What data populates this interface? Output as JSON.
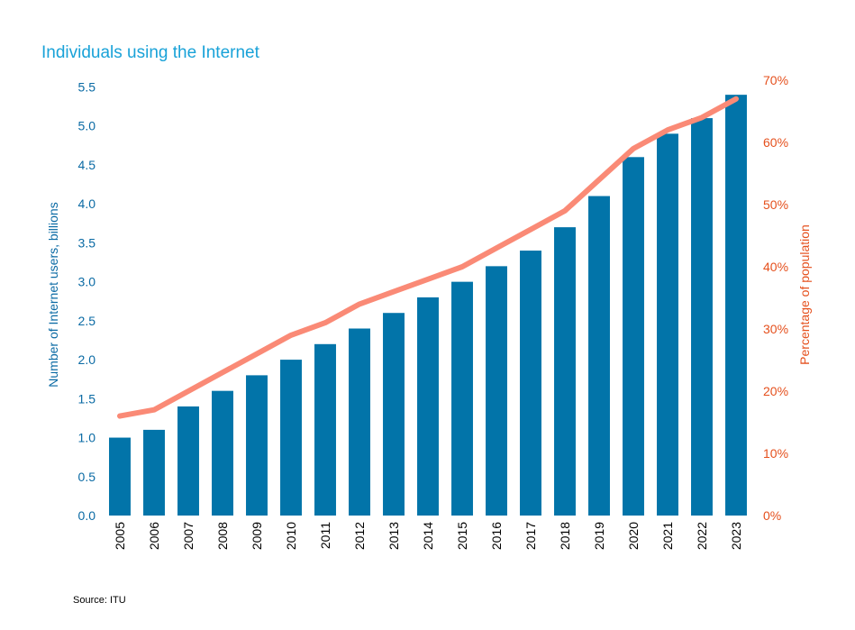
{
  "chart_data": {
    "type": "bar+line",
    "title": "Individuals using the Internet",
    "source": "Source: ITU",
    "ylabel_left": "Number of Internet users, billions",
    "ylabel_right": "Percentage of population",
    "categories": [
      "2005",
      "2006",
      "2007",
      "2008",
      "2009",
      "2010",
      "2011",
      "2012",
      "2013",
      "2014",
      "2015",
      "2016",
      "2017",
      "2018",
      "2019",
      "2020",
      "2021",
      "2022",
      "2023"
    ],
    "series": [
      {
        "name": "Number of Internet users, billions",
        "kind": "bar",
        "axis": "left",
        "values": [
          1.0,
          1.1,
          1.4,
          1.6,
          1.8,
          2.0,
          2.2,
          2.4,
          2.6,
          2.8,
          3.0,
          3.2,
          3.4,
          3.7,
          4.1,
          4.6,
          4.9,
          5.1,
          5.4
        ]
      },
      {
        "name": "Percentage of population",
        "kind": "line",
        "axis": "right",
        "values": [
          16,
          17,
          20,
          23,
          26,
          29,
          31,
          34,
          36,
          38,
          40,
          43,
          46,
          49,
          54,
          59,
          62,
          64,
          67
        ]
      }
    ],
    "ylim_left": [
      0,
      5.5
    ],
    "yticks_left": [
      "0.0",
      "0.5",
      "1.0",
      "1.5",
      "2.0",
      "2.5",
      "3.0",
      "3.5",
      "4.0",
      "4.5",
      "5.0",
      "5.5"
    ],
    "ylim_right": [
      0,
      70
    ],
    "yticks_right": [
      "0%",
      "10%",
      "20%",
      "30%",
      "40%",
      "50%",
      "60%",
      "70%"
    ],
    "grid": false,
    "colors": {
      "bar": "#0274a9",
      "line": "#fa8a76",
      "title": "#19a2d8",
      "left_axis": "#0a6aa4",
      "right_axis": "#e5501d"
    }
  }
}
